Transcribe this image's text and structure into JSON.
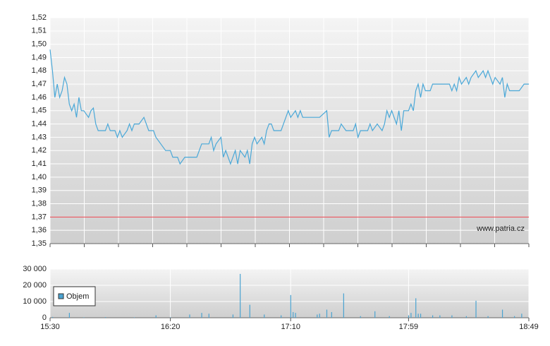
{
  "chart_data": [
    {
      "type": "line",
      "color": "#4aa8d8",
      "grid": true,
      "xlim": [
        "15:30",
        "18:49"
      ],
      "ylim": [
        1.35,
        1.52
      ],
      "yticks": [
        {
          "value": 1.35,
          "label": "1,35"
        },
        {
          "value": 1.36,
          "label": "1,36"
        },
        {
          "value": 1.37,
          "label": "1,37"
        },
        {
          "value": 1.38,
          "label": "1,38"
        },
        {
          "value": 1.39,
          "label": "1,39"
        },
        {
          "value": 1.4,
          "label": "1,40"
        },
        {
          "value": 1.41,
          "label": "1,41"
        },
        {
          "value": 1.42,
          "label": "1,42"
        },
        {
          "value": 1.43,
          "label": "1,43"
        },
        {
          "value": 1.44,
          "label": "1,44"
        },
        {
          "value": 1.45,
          "label": "1,45"
        },
        {
          "value": 1.46,
          "label": "1,46"
        },
        {
          "value": 1.47,
          "label": "1,47"
        },
        {
          "value": 1.48,
          "label": "1,48"
        },
        {
          "value": 1.49,
          "label": "1,49"
        },
        {
          "value": 1.5,
          "label": "1,50"
        },
        {
          "value": 1.51,
          "label": "1,51"
        },
        {
          "value": 1.52,
          "label": "1,52"
        }
      ],
      "reference_line": 1.37,
      "reference_color": "#e8404a",
      "watermark": "www.patria.cz",
      "x": [
        "15:30",
        "15:31",
        "15:32",
        "15:33",
        "15:34",
        "15:35",
        "15:36",
        "15:37",
        "15:38",
        "15:39",
        "15:40",
        "15:41",
        "15:42",
        "15:43",
        "15:44",
        "15:46",
        "15:47",
        "15:48",
        "15:49",
        "15:50",
        "15:53",
        "15:54",
        "15:55",
        "15:57",
        "15:58",
        "15:59",
        "16:00",
        "16:02",
        "16:03",
        "16:04",
        "16:05",
        "16:07",
        "16:09",
        "16:10",
        "16:11",
        "16:13",
        "16:14",
        "16:16",
        "16:18",
        "16:20",
        "16:21",
        "16:23",
        "16:24",
        "16:26",
        "16:28",
        "16:31",
        "16:33",
        "16:36",
        "16:37",
        "16:38",
        "16:39",
        "16:41",
        "16:42",
        "16:43",
        "16:44",
        "16:45",
        "16:46",
        "16:47",
        "16:48",
        "16:49",
        "16:51",
        "16:52",
        "16:53",
        "16:54",
        "16:55",
        "16:56",
        "16:58",
        "16:59",
        "17:00",
        "17:01",
        "17:02",
        "17:03",
        "17:06",
        "17:07",
        "17:08",
        "17:09",
        "17:10",
        "17:12",
        "17:13",
        "17:14",
        "17:15",
        "17:18",
        "17:22",
        "17:25",
        "17:26",
        "17:27",
        "17:30",
        "17:31",
        "17:33",
        "17:36",
        "17:37",
        "17:38",
        "17:39",
        "17:42",
        "17:43",
        "17:44",
        "17:46",
        "17:48",
        "17:49",
        "17:50",
        "17:51",
        "17:52",
        "17:54",
        "17:55",
        "17:56",
        "17:57",
        "17:59",
        "18:00",
        "18:01",
        "18:02",
        "18:03",
        "18:04",
        "18:05",
        "18:06",
        "18:08",
        "18:09",
        "18:13",
        "18:16",
        "18:17",
        "18:18",
        "18:19",
        "18:20",
        "18:21",
        "18:23",
        "18:24",
        "18:25",
        "18:27",
        "18:28",
        "18:30",
        "18:31",
        "18:32",
        "18:34",
        "18:35",
        "18:37",
        "18:38",
        "18:39",
        "18:40",
        "18:41",
        "18:45",
        "18:47",
        "18:49"
      ],
      "values": [
        1.496,
        1.48,
        1.46,
        1.47,
        1.46,
        1.465,
        1.475,
        1.47,
        1.455,
        1.45,
        1.455,
        1.445,
        1.46,
        1.45,
        1.45,
        1.445,
        1.45,
        1.452,
        1.44,
        1.435,
        1.435,
        1.44,
        1.435,
        1.435,
        1.43,
        1.435,
        1.43,
        1.435,
        1.44,
        1.435,
        1.44,
        1.44,
        1.445,
        1.44,
        1.435,
        1.435,
        1.43,
        1.425,
        1.42,
        1.42,
        1.415,
        1.415,
        1.41,
        1.415,
        1.415,
        1.415,
        1.425,
        1.425,
        1.43,
        1.42,
        1.425,
        1.43,
        1.415,
        1.42,
        1.415,
        1.41,
        1.415,
        1.42,
        1.41,
        1.42,
        1.415,
        1.42,
        1.41,
        1.425,
        1.43,
        1.425,
        1.43,
        1.425,
        1.435,
        1.44,
        1.44,
        1.435,
        1.435,
        1.44,
        1.445,
        1.45,
        1.445,
        1.45,
        1.445,
        1.45,
        1.445,
        1.445,
        1.445,
        1.45,
        1.43,
        1.435,
        1.435,
        1.44,
        1.435,
        1.435,
        1.44,
        1.43,
        1.435,
        1.435,
        1.44,
        1.435,
        1.44,
        1.435,
        1.44,
        1.45,
        1.445,
        1.45,
        1.44,
        1.45,
        1.435,
        1.45,
        1.45,
        1.455,
        1.45,
        1.465,
        1.47,
        1.46,
        1.47,
        1.465,
        1.465,
        1.47,
        1.47,
        1.47,
        1.465,
        1.47,
        1.465,
        1.475,
        1.47,
        1.475,
        1.47,
        1.475,
        1.48,
        1.475,
        1.48,
        1.475,
        1.48,
        1.47,
        1.475,
        1.47,
        1.475,
        1.46,
        1.47,
        1.465,
        1.465,
        1.47,
        1.47
      ]
    },
    {
      "type": "bar",
      "grid": true,
      "legend": "left",
      "xlim": [
        "15:30",
        "18:49"
      ],
      "xticks": [
        "15:30",
        "16:20",
        "17:10",
        "17:59",
        "18:49"
      ],
      "ylim": [
        0,
        30000
      ],
      "yticks": [
        {
          "value": 0,
          "label": "0"
        },
        {
          "value": 10000,
          "label": "10 000"
        },
        {
          "value": 20000,
          "label": "20 000"
        },
        {
          "value": 30000,
          "label": "30 000"
        }
      ],
      "x": [
        "15:31",
        "15:38",
        "15:44",
        "15:53",
        "16:05",
        "16:14",
        "16:20",
        "16:28",
        "16:33",
        "16:36",
        "16:46",
        "16:49",
        "16:53",
        "16:59",
        "17:06",
        "17:10",
        "17:11",
        "17:12",
        "17:21",
        "17:22",
        "17:25",
        "17:27",
        "17:32",
        "17:39",
        "17:45",
        "17:51",
        "17:59",
        "18:00",
        "18:02",
        "18:03",
        "18:04",
        "18:09",
        "18:12",
        "18:17",
        "18:23",
        "18:27",
        "18:32",
        "18:38",
        "18:43",
        "18:46"
      ],
      "series": [
        {
          "name": "Objem",
          "color": "#4aa3d1",
          "values": [
            500,
            3000,
            300,
            400,
            300,
            1500,
            300,
            2000,
            3000,
            2500,
            2000,
            27000,
            8000,
            2000,
            1500,
            14000,
            3500,
            3000,
            2000,
            2500,
            5000,
            3500,
            15000,
            1000,
            4000,
            1000,
            1500,
            3000,
            12000,
            2500,
            2500,
            1500,
            1500,
            1500,
            1000,
            10500,
            1000,
            5000,
            1000,
            2500
          ]
        }
      ]
    }
  ]
}
